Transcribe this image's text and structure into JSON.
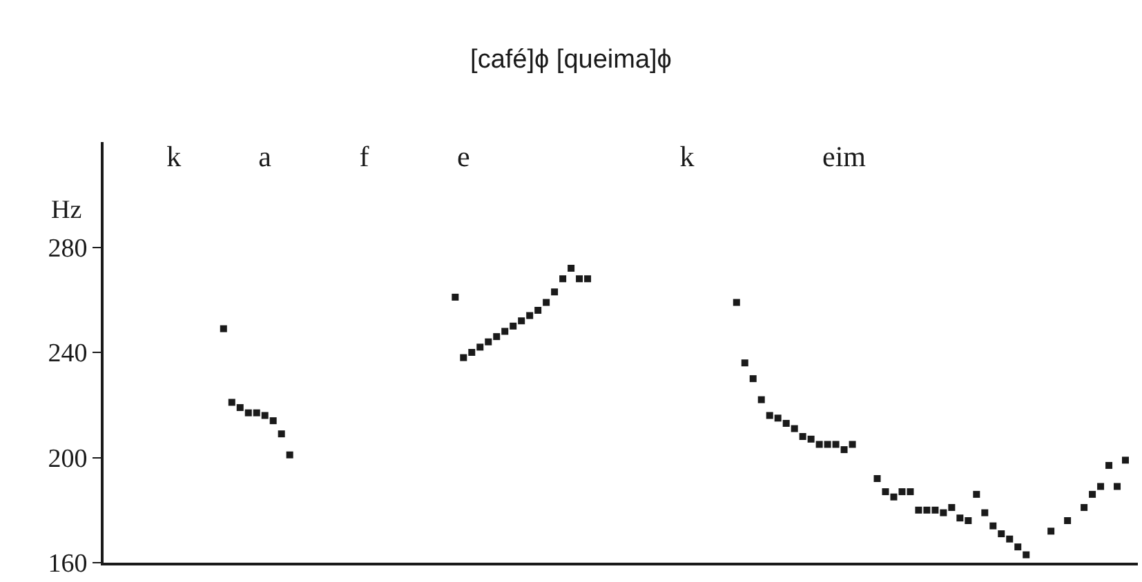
{
  "chart_data": {
    "type": "scatter",
    "title": "[café]ϕ [queima]ϕ",
    "ylabel": "Hz",
    "categories": [
      null,
      null,
      null,
      null,
      null,
      null,
      null,
      null,
      "k",
      null,
      null,
      null,
      null,
      null,
      null,
      null,
      null,
      null,
      null,
      "a",
      null,
      null,
      null,
      null,
      null,
      null,
      null,
      null,
      null,
      null,
      null,
      "f",
      null,
      null,
      null,
      null,
      null,
      null,
      null,
      null,
      null,
      null,
      null,
      "e",
      null,
      null,
      null,
      null,
      null,
      null,
      null,
      null,
      null,
      null,
      null,
      null,
      null,
      null,
      null,
      null,
      null,
      null,
      null,
      null,
      null,
      null,
      null,
      null,
      null,
      null,
      "k",
      null,
      null,
      null,
      null,
      null,
      null,
      null,
      null,
      null,
      null,
      null,
      null,
      null,
      null,
      null,
      null,
      null,
      null,
      "eim",
      null,
      null,
      null,
      null,
      null,
      null,
      null,
      null,
      null,
      null,
      null,
      null,
      null,
      null,
      null,
      null,
      null,
      null,
      null,
      null,
      null,
      null,
      null,
      null,
      null,
      null,
      null,
      null,
      null,
      null,
      null,
      null,
      null,
      null,
      null
    ],
    "series": [
      {
        "color": "#1a1a1a",
        "values": [
          null,
          null,
          null,
          null,
          null,
          null,
          null,
          null,
          null,
          null,
          null,
          null,
          null,
          null,
          249,
          221,
          219,
          217,
          217,
          216,
          214,
          209,
          201,
          null,
          null,
          null,
          null,
          null,
          null,
          null,
          null,
          null,
          null,
          null,
          null,
          null,
          null,
          null,
          null,
          null,
          null,
          null,
          261,
          238,
          240,
          242,
          244,
          246,
          248,
          250,
          252,
          254,
          256,
          259,
          263,
          268,
          272,
          268,
          268,
          null,
          null,
          null,
          null,
          null,
          null,
          null,
          null,
          null,
          null,
          null,
          null,
          null,
          null,
          null,
          null,
          null,
          259,
          236,
          230,
          222,
          216,
          215,
          213,
          211,
          208,
          207,
          205,
          205,
          205,
          203,
          205,
          null,
          null,
          192,
          187,
          185,
          187,
          187,
          180,
          180,
          180,
          179,
          181,
          177,
          176,
          186,
          179,
          174,
          171,
          169,
          166,
          163,
          null,
          null,
          172,
          null,
          176,
          null,
          181,
          186,
          189,
          197,
          189,
          199,
          null
        ]
      }
    ],
    "ylim": [
      160,
      320
    ],
    "yticks": [
      160,
      200,
      240,
      280
    ],
    "marker": "square",
    "legend": false
  }
}
